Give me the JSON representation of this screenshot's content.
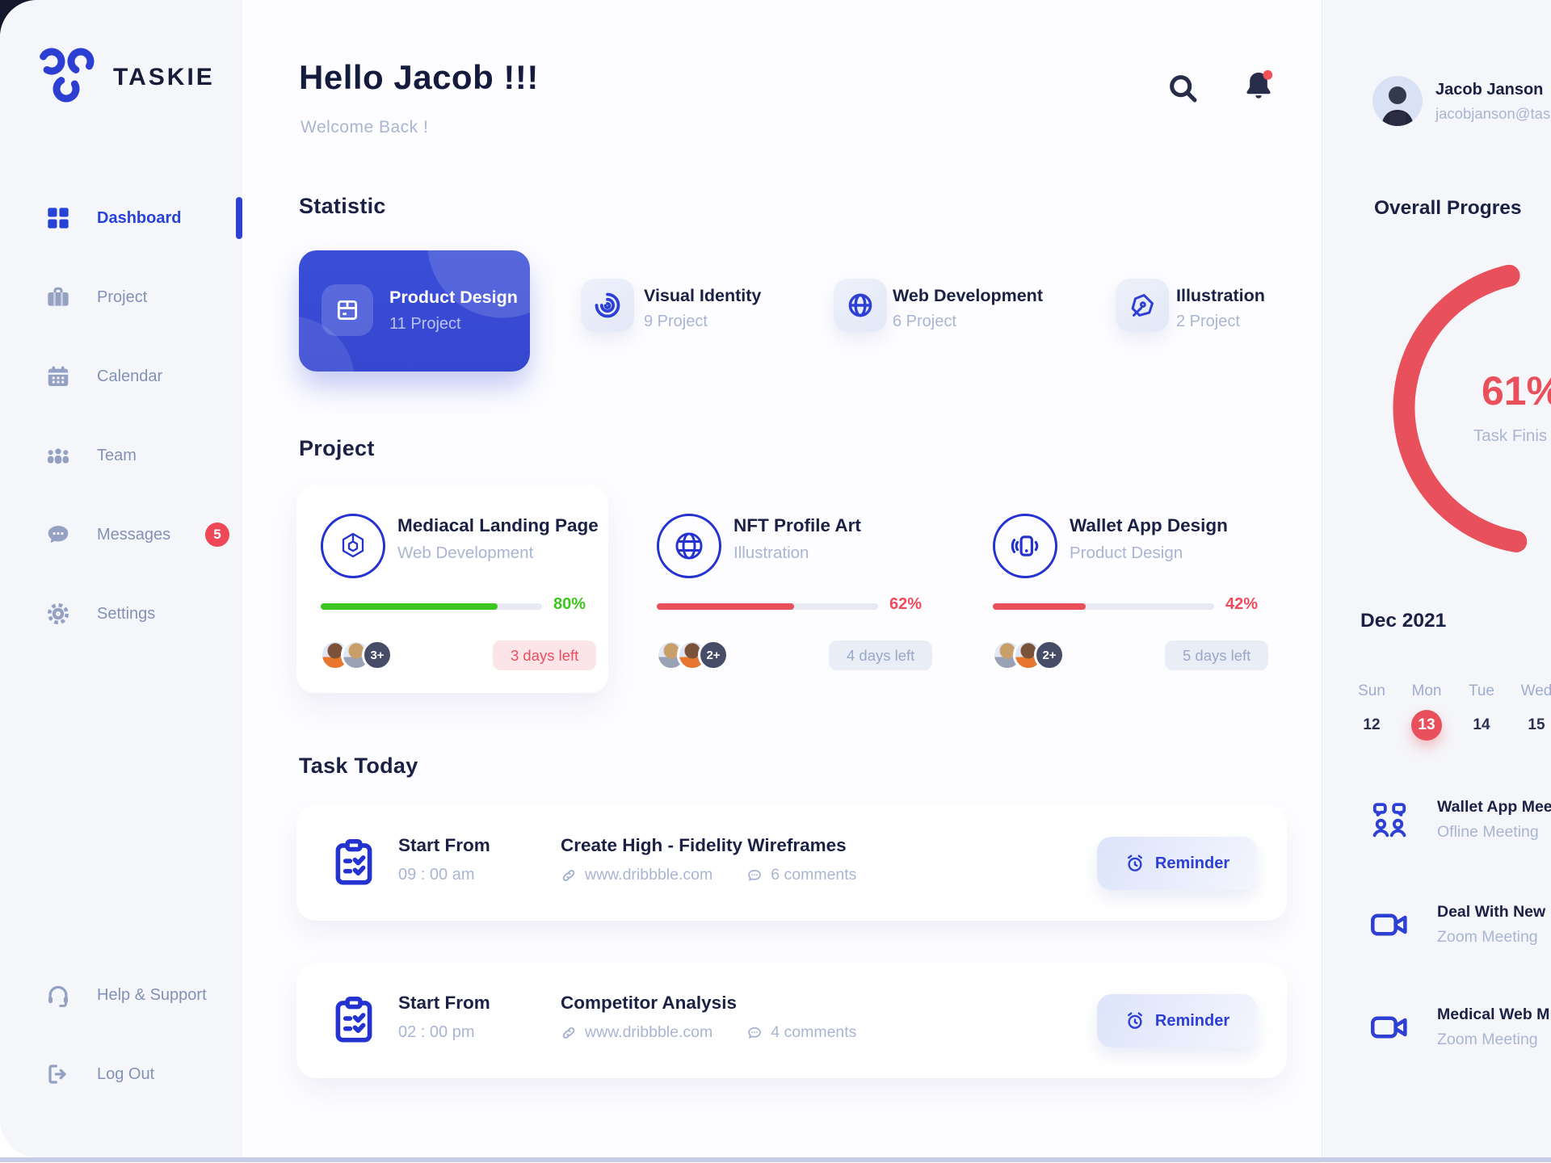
{
  "brand": {
    "name": "TASKIE"
  },
  "sidebar": {
    "items": [
      {
        "label": "Dashboard"
      },
      {
        "label": "Project"
      },
      {
        "label": "Calendar"
      },
      {
        "label": "Team"
      },
      {
        "label": "Messages",
        "badge": "5"
      },
      {
        "label": "Settings"
      }
    ],
    "footer": [
      {
        "label": "Help & Support"
      },
      {
        "label": "Log Out"
      }
    ]
  },
  "header": {
    "greeting": "Hello Jacob !!!",
    "welcome": "Welcome Back !"
  },
  "statistic": {
    "title": "Statistic",
    "cards": [
      {
        "title": "Product Design",
        "count": "11 Project"
      },
      {
        "title": "Visual Identity",
        "count": "9 Project"
      },
      {
        "title": "Web Development",
        "count": "6 Project"
      },
      {
        "title": "Illustration",
        "count": "2 Project"
      }
    ]
  },
  "projects": {
    "title": "Project",
    "cards": [
      {
        "title": "Mediacal Landing Page",
        "category": "Web Development",
        "percent": 80,
        "percent_label": "80%",
        "extra": "3+",
        "days_left": "3 days left"
      },
      {
        "title": "NFT Profile Art",
        "category": "Illustration",
        "percent": 62,
        "percent_label": "62%",
        "extra": "2+",
        "days_left": "4 days left"
      },
      {
        "title": "Wallet App Design",
        "category": "Product Design",
        "percent": 42,
        "percent_label": "42%",
        "extra": "2+",
        "days_left": "5 days left"
      }
    ]
  },
  "tasks": {
    "title": "Task Today",
    "items": [
      {
        "start_label": "Start From",
        "time": "09 : 00 am",
        "title": "Create High - Fidelity Wireframes",
        "link": "www.dribbble.com",
        "comments": "6 comments",
        "button": "Reminder"
      },
      {
        "start_label": "Start From",
        "time": "02 : 00 pm",
        "title": "Competitor Analysis",
        "link": "www.dribbble.com",
        "comments": "4 comments",
        "button": "Reminder"
      }
    ]
  },
  "profile": {
    "name": "Jacob Janson",
    "email": "jacobjanson@task"
  },
  "overall": {
    "title": "Overall Progres",
    "value": 61,
    "percent_label": "61%",
    "caption": "Task Finis"
  },
  "calendar": {
    "month": "Dec 2021",
    "day_headers": [
      "Sun",
      "Mon",
      "Tue",
      "Wed"
    ],
    "dates": [
      "12",
      "13",
      "14",
      "15"
    ],
    "selected": "13"
  },
  "meetings": {
    "items": [
      {
        "title": "Wallet App Mee",
        "subtitle": "Ofline Meeting"
      },
      {
        "title": "Deal With New",
        "subtitle": "Zoom Meeting"
      },
      {
        "title": "Medical Web M",
        "subtitle": "Zoom Meeting"
      }
    ]
  },
  "colors": {
    "primary": "#2e40d4",
    "accent_red": "#e8505b",
    "green": "#3dc520"
  }
}
